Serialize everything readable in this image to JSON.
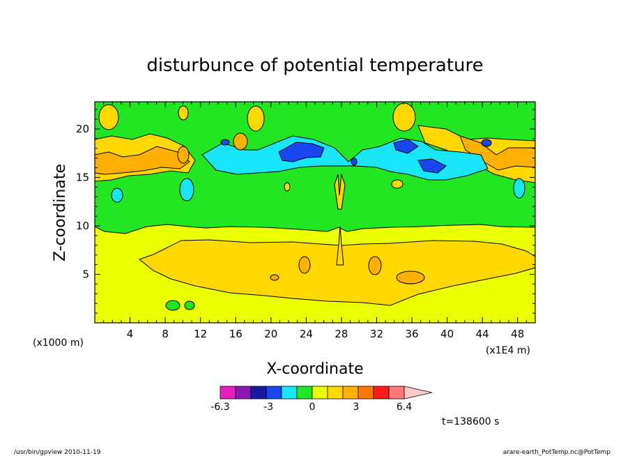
{
  "chart_data": {
    "type": "heatmap",
    "title": "disturbunce of potential temperature",
    "xlabel": "X-coordinate",
    "ylabel": "Z-coordinate",
    "x_unit": "(x1E4 m)",
    "y_unit": "(x1000 m)",
    "xlim": [
      0,
      50
    ],
    "ylim": [
      0,
      22.8
    ],
    "x_ticks": [
      "4",
      "8",
      "12",
      "16",
      "20",
      "24",
      "28",
      "32",
      "36",
      "40",
      "44",
      "48"
    ],
    "y_ticks": [
      "5",
      "10",
      "15",
      "20"
    ],
    "colorbar": {
      "labels": [
        "-6.3",
        "-3",
        "0",
        "3",
        "6.4"
      ],
      "colors": [
        "#e81ec0",
        "#8a18b0",
        "#1a1aa0",
        "#1a46f0",
        "#18e6f8",
        "#22e622",
        "#eaff00",
        "#ffd800",
        "#ffb000",
        "#ff7a00",
        "#ff1c1c",
        "#ff7878",
        "#ffc8c8"
      ],
      "boundaries": [
        -6.3,
        -5.25,
        -4.2,
        -3.15,
        -2.1,
        -1.05,
        0,
        1.05,
        2.1,
        3.15,
        4.2,
        5.25,
        6.4
      ]
    },
    "grid": false,
    "legend": "colorbar-bottom",
    "regions": {
      "background_near_zero_positive": 0.5,
      "lower_warm_band_z_2_to_8": 1.5,
      "upper_stratosphere_near_zero": -0.5,
      "cold_anomaly_band_z_16_to_19": -3.2,
      "warm_cells_z_15_to_21_edges": 2.5
    }
  },
  "time_label": "t=138600 s",
  "footer": {
    "left": "/usr/bin/gpview   2010-11-19",
    "right": "arare-earth_PotTemp.nc@PotTemp"
  }
}
